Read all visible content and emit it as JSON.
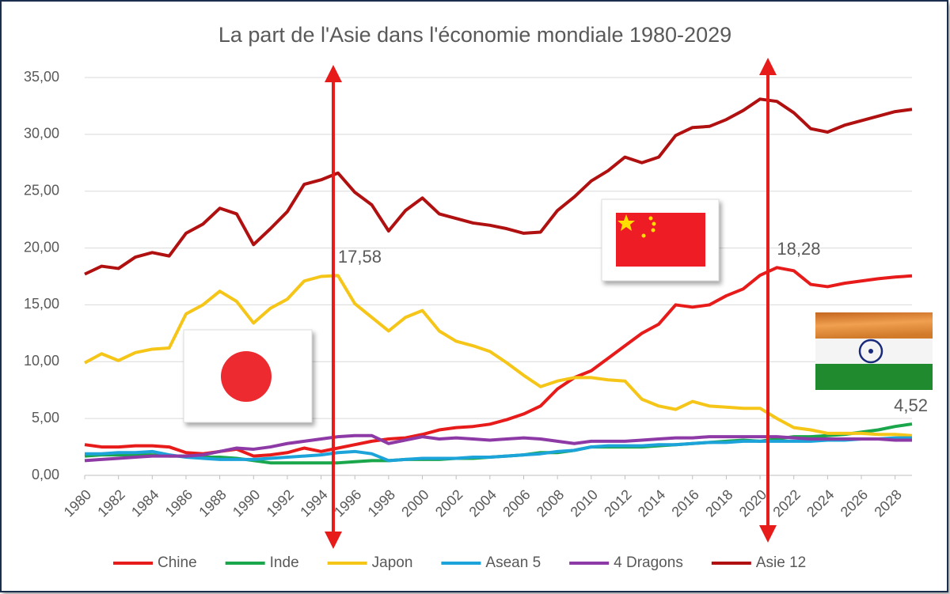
{
  "chart_data": {
    "type": "line",
    "title": "La part de l'Asie dans l'économie mondiale 1980-2029",
    "x": [
      1980,
      1981,
      1982,
      1983,
      1984,
      1985,
      1986,
      1987,
      1988,
      1989,
      1990,
      1991,
      1992,
      1993,
      1994,
      1995,
      1996,
      1997,
      1998,
      1999,
      2000,
      2001,
      2002,
      2003,
      2004,
      2005,
      2006,
      2007,
      2008,
      2009,
      2010,
      2011,
      2012,
      2013,
      2014,
      2015,
      2016,
      2017,
      2018,
      2019,
      2020,
      2021,
      2022,
      2023,
      2024,
      2025,
      2026,
      2027,
      2028,
      2029
    ],
    "xlim": [
      1980,
      2029
    ],
    "xticks": [
      1980,
      1982,
      1984,
      1986,
      1988,
      1990,
      1992,
      1994,
      1996,
      1998,
      2000,
      2002,
      2004,
      2006,
      2008,
      2010,
      2012,
      2014,
      2016,
      2018,
      2020,
      2022,
      2024,
      2026,
      2028
    ],
    "ylim": [
      0,
      35
    ],
    "yticks": [
      {
        "value": 0,
        "label": "0,00"
      },
      {
        "value": 5,
        "label": "5,00"
      },
      {
        "value": 10,
        "label": "10,00"
      },
      {
        "value": 15,
        "label": "15,00"
      },
      {
        "value": 20,
        "label": "20,00"
      },
      {
        "value": 25,
        "label": "25,00"
      },
      {
        "value": 30,
        "label": "30,00"
      },
      {
        "value": 35,
        "label": "35,00"
      }
    ],
    "grid": true,
    "legend": "bottom",
    "series": [
      {
        "name": "Chine",
        "color": "#e81b1b",
        "values": [
          2.7,
          2.5,
          2.5,
          2.6,
          2.6,
          2.5,
          2.0,
          1.9,
          2.1,
          2.3,
          1.7,
          1.8,
          2.0,
          2.4,
          2.1,
          2.4,
          2.7,
          3.0,
          3.2,
          3.3,
          3.6,
          4.0,
          4.2,
          4.3,
          4.5,
          4.9,
          5.4,
          6.1,
          7.6,
          8.6,
          9.2,
          10.3,
          11.4,
          12.5,
          13.3,
          15.0,
          14.8,
          15.0,
          15.8,
          16.4,
          17.6,
          18.28,
          18.0,
          16.8,
          16.6,
          16.9,
          17.1,
          17.3,
          17.45,
          17.55
        ],
        "value_labels": [
          null,
          null,
          null,
          null,
          null,
          null,
          null,
          null,
          null,
          null,
          null,
          null,
          null,
          null,
          null,
          null,
          null,
          null,
          null,
          null,
          null,
          null,
          null,
          null,
          null,
          null,
          null,
          null,
          null,
          null,
          null,
          null,
          null,
          null,
          null,
          null,
          null,
          null,
          null,
          null,
          null,
          "18,28",
          null,
          null,
          null,
          null,
          null,
          null,
          null,
          null
        ]
      },
      {
        "name": "Inde",
        "color": "#1aa64a",
        "values": [
          1.7,
          1.8,
          1.8,
          1.8,
          1.8,
          1.7,
          1.7,
          1.6,
          1.6,
          1.5,
          1.3,
          1.1,
          1.1,
          1.1,
          1.1,
          1.1,
          1.2,
          1.3,
          1.3,
          1.4,
          1.4,
          1.4,
          1.5,
          1.5,
          1.6,
          1.7,
          1.8,
          2.0,
          2.0,
          2.2,
          2.5,
          2.5,
          2.5,
          2.5,
          2.6,
          2.7,
          2.8,
          2.9,
          3.0,
          3.1,
          3.0,
          3.2,
          3.4,
          3.4,
          3.5,
          3.6,
          3.8,
          4.0,
          4.3,
          4.52
        ],
        "value_labels": [
          null,
          null,
          null,
          null,
          null,
          null,
          null,
          null,
          null,
          null,
          null,
          null,
          null,
          null,
          null,
          null,
          null,
          null,
          null,
          null,
          null,
          null,
          null,
          null,
          null,
          null,
          null,
          null,
          null,
          null,
          null,
          null,
          null,
          null,
          null,
          null,
          null,
          null,
          null,
          null,
          null,
          null,
          null,
          null,
          null,
          null,
          null,
          null,
          null,
          "4,52"
        ]
      },
      {
        "name": "Japon",
        "color": "#f5c518",
        "values": [
          9.9,
          10.7,
          10.1,
          10.8,
          11.1,
          11.2,
          14.2,
          15.0,
          16.2,
          15.3,
          13.4,
          14.7,
          15.5,
          17.1,
          17.5,
          17.58,
          15.1,
          13.9,
          12.7,
          13.9,
          14.5,
          12.7,
          11.8,
          11.4,
          10.9,
          9.9,
          8.8,
          7.8,
          8.3,
          8.6,
          8.6,
          8.4,
          8.3,
          6.7,
          6.1,
          5.8,
          6.5,
          6.1,
          6.0,
          5.9,
          5.9,
          5.0,
          4.2,
          4.0,
          3.7,
          3.7,
          3.7,
          3.6,
          3.6,
          3.5
        ],
        "value_labels": [
          null,
          null,
          null,
          null,
          null,
          null,
          null,
          null,
          null,
          null,
          null,
          null,
          null,
          null,
          null,
          "17,58",
          null,
          null,
          null,
          null,
          null,
          null,
          null,
          null,
          null,
          null,
          null,
          null,
          null,
          null,
          null,
          null,
          null,
          null,
          null,
          null,
          null,
          null,
          null,
          null,
          null,
          null,
          null,
          null,
          null,
          null,
          null,
          null,
          null,
          null
        ]
      },
      {
        "name": "Asean 5",
        "color": "#1ca3d9",
        "values": [
          1.9,
          1.9,
          2.0,
          2.0,
          2.1,
          1.8,
          1.6,
          1.5,
          1.4,
          1.4,
          1.4,
          1.5,
          1.6,
          1.7,
          1.8,
          2.0,
          2.1,
          1.9,
          1.3,
          1.4,
          1.5,
          1.5,
          1.5,
          1.6,
          1.6,
          1.7,
          1.8,
          1.9,
          2.1,
          2.2,
          2.5,
          2.6,
          2.6,
          2.6,
          2.7,
          2.7,
          2.8,
          2.9,
          2.9,
          3.0,
          3.0,
          3.0,
          3.0,
          3.0,
          3.1,
          3.1,
          3.2,
          3.2,
          3.3,
          3.3
        ]
      },
      {
        "name": "4 Dragons",
        "color": "#8e3aa6",
        "values": [
          1.3,
          1.4,
          1.5,
          1.6,
          1.7,
          1.7,
          1.7,
          1.8,
          2.1,
          2.4,
          2.3,
          2.5,
          2.8,
          3.0,
          3.2,
          3.4,
          3.5,
          3.5,
          2.8,
          3.1,
          3.4,
          3.2,
          3.3,
          3.2,
          3.1,
          3.2,
          3.3,
          3.2,
          3.0,
          2.8,
          3.0,
          3.0,
          3.0,
          3.1,
          3.2,
          3.3,
          3.3,
          3.4,
          3.4,
          3.4,
          3.4,
          3.4,
          3.3,
          3.2,
          3.2,
          3.2,
          3.2,
          3.2,
          3.1,
          3.1
        ]
      },
      {
        "name": "Asie 12",
        "color": "#b01010",
        "values": [
          17.7,
          18.4,
          18.2,
          19.2,
          19.6,
          19.3,
          21.3,
          22.1,
          23.5,
          23.0,
          20.3,
          21.7,
          23.2,
          25.6,
          26.0,
          26.6,
          24.9,
          23.8,
          21.5,
          23.3,
          24.4,
          23.0,
          22.6,
          22.2,
          22.0,
          21.7,
          21.3,
          21.4,
          23.3,
          24.5,
          25.9,
          26.8,
          28.0,
          27.5,
          28.0,
          29.9,
          30.6,
          30.7,
          31.3,
          32.1,
          33.1,
          32.9,
          31.9,
          30.5,
          30.2,
          30.8,
          31.2,
          31.6,
          32.0,
          32.2
        ]
      }
    ]
  }
}
